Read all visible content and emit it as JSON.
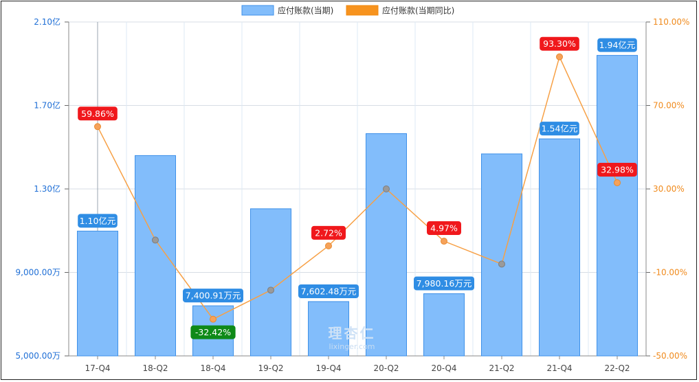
{
  "chart_data": {
    "type": "bar+line",
    "categories": [
      "17-Q4",
      "18-Q2",
      "18-Q4",
      "19-Q2",
      "19-Q4",
      "20-Q2",
      "20-Q4",
      "21-Q2",
      "21-Q4",
      "22-Q2"
    ],
    "legend": [
      "应付账款(当期)",
      "应付账款(当期同比)"
    ],
    "legend_position": "top-center",
    "left_axis": {
      "unit": "万",
      "ticks": [
        "5,000.00万",
        "9,000.00万",
        "1.30亿",
        "1.70亿",
        "2.10亿"
      ],
      "tick_values": [
        5000,
        9000,
        13000,
        17000,
        21000
      ],
      "range": [
        5000,
        21000
      ]
    },
    "right_axis": {
      "unit": "%",
      "ticks": [
        "-50.00%",
        "-10.00%",
        "30.00%",
        "70.00%",
        "110.00%"
      ],
      "tick_values": [
        -50,
        -10,
        30,
        70,
        110
      ],
      "range": [
        -50,
        110
      ]
    },
    "bar_series": {
      "name": "应付账款(当期)",
      "values": [
        10980,
        14600,
        7400.91,
        12050,
        7602.48,
        15650,
        7980.16,
        14680,
        15400,
        19400
      ]
    },
    "line_series": {
      "name": "应付账款(当期同比)",
      "values": [
        59.86,
        5.5,
        -32.42,
        -18.5,
        2.72,
        30,
        4.97,
        -6,
        93.3,
        32.98
      ]
    },
    "bar_labels": [
      {
        "index": 0,
        "text": "1.10亿元"
      },
      {
        "index": 2,
        "text": "7,400.91万元"
      },
      {
        "index": 4,
        "text": "7,602.48万元"
      },
      {
        "index": 6,
        "text": "7,980.16万元"
      },
      {
        "index": 8,
        "text": "1.54亿元"
      },
      {
        "index": 9,
        "text": "1.94亿元"
      }
    ],
    "line_labels": [
      {
        "index": 0,
        "text": "59.86%",
        "color": "#f0181c"
      },
      {
        "index": 2,
        "text": "-32.42%",
        "color": "#0f8a18"
      },
      {
        "index": 4,
        "text": "2.72%",
        "color": "#f0181c"
      },
      {
        "index": 6,
        "text": "4.97%",
        "color": "#f0181c"
      },
      {
        "index": 8,
        "text": "93.30%",
        "color": "#f0181c"
      },
      {
        "index": 9,
        "text": "32.98%",
        "color": "#f0181c"
      }
    ],
    "colors": {
      "bar_fill": "#82bdfb",
      "bar_stroke": "#3d90e8",
      "bar_label_bg": "#2f8de4",
      "line": "#f7a045",
      "marker_up": "#f6a25a",
      "marker_down": "#9a9a9a",
      "left_tick": "#1f6fd6",
      "right_tick": "#f08a1c",
      "grid": "#d7dde4",
      "x_tick": "#444444"
    },
    "watermark": {
      "logo_text": "理杏仁",
      "url_text": "lixinger.com"
    }
  }
}
